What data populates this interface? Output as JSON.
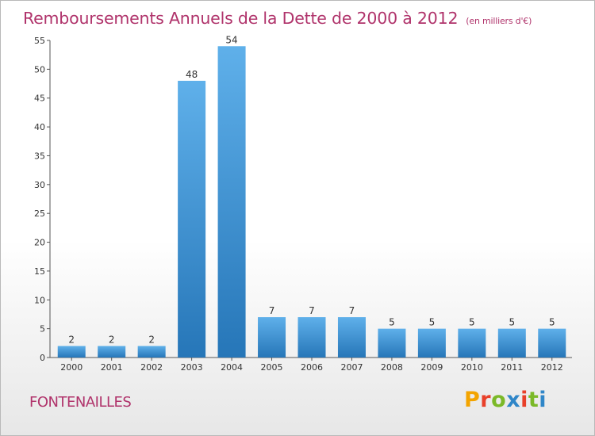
{
  "header": {
    "title": "Remboursements Annuels de la Dette de 2000 à 2012",
    "unit": "(en milliers d'€)"
  },
  "footer": {
    "place": "FONTENAILLES",
    "brand": "Proxiti",
    "brand_colors": [
      "#f3a400",
      "#e8402a",
      "#7bb928",
      "#2f86c8",
      "#e8402a",
      "#7bb928",
      "#2f86c8"
    ]
  },
  "chart_data": {
    "type": "bar",
    "title": "Remboursements Annuels de la Dette de 2000 à 2012",
    "unit": "(en milliers d'€)",
    "categories": [
      "2000",
      "2001",
      "2002",
      "2003",
      "2004",
      "2005",
      "2006",
      "2007",
      "2008",
      "2009",
      "2010",
      "2011",
      "2012"
    ],
    "values": [
      2,
      2,
      2,
      48,
      54,
      7,
      7,
      7,
      5,
      5,
      5,
      5,
      5
    ],
    "ylim": [
      0,
      55
    ],
    "yticks": [
      0,
      5,
      10,
      15,
      20,
      25,
      30,
      35,
      40,
      45,
      50,
      55
    ],
    "grid": false,
    "data_labels": true,
    "bar_color": "#3a8fd6"
  }
}
